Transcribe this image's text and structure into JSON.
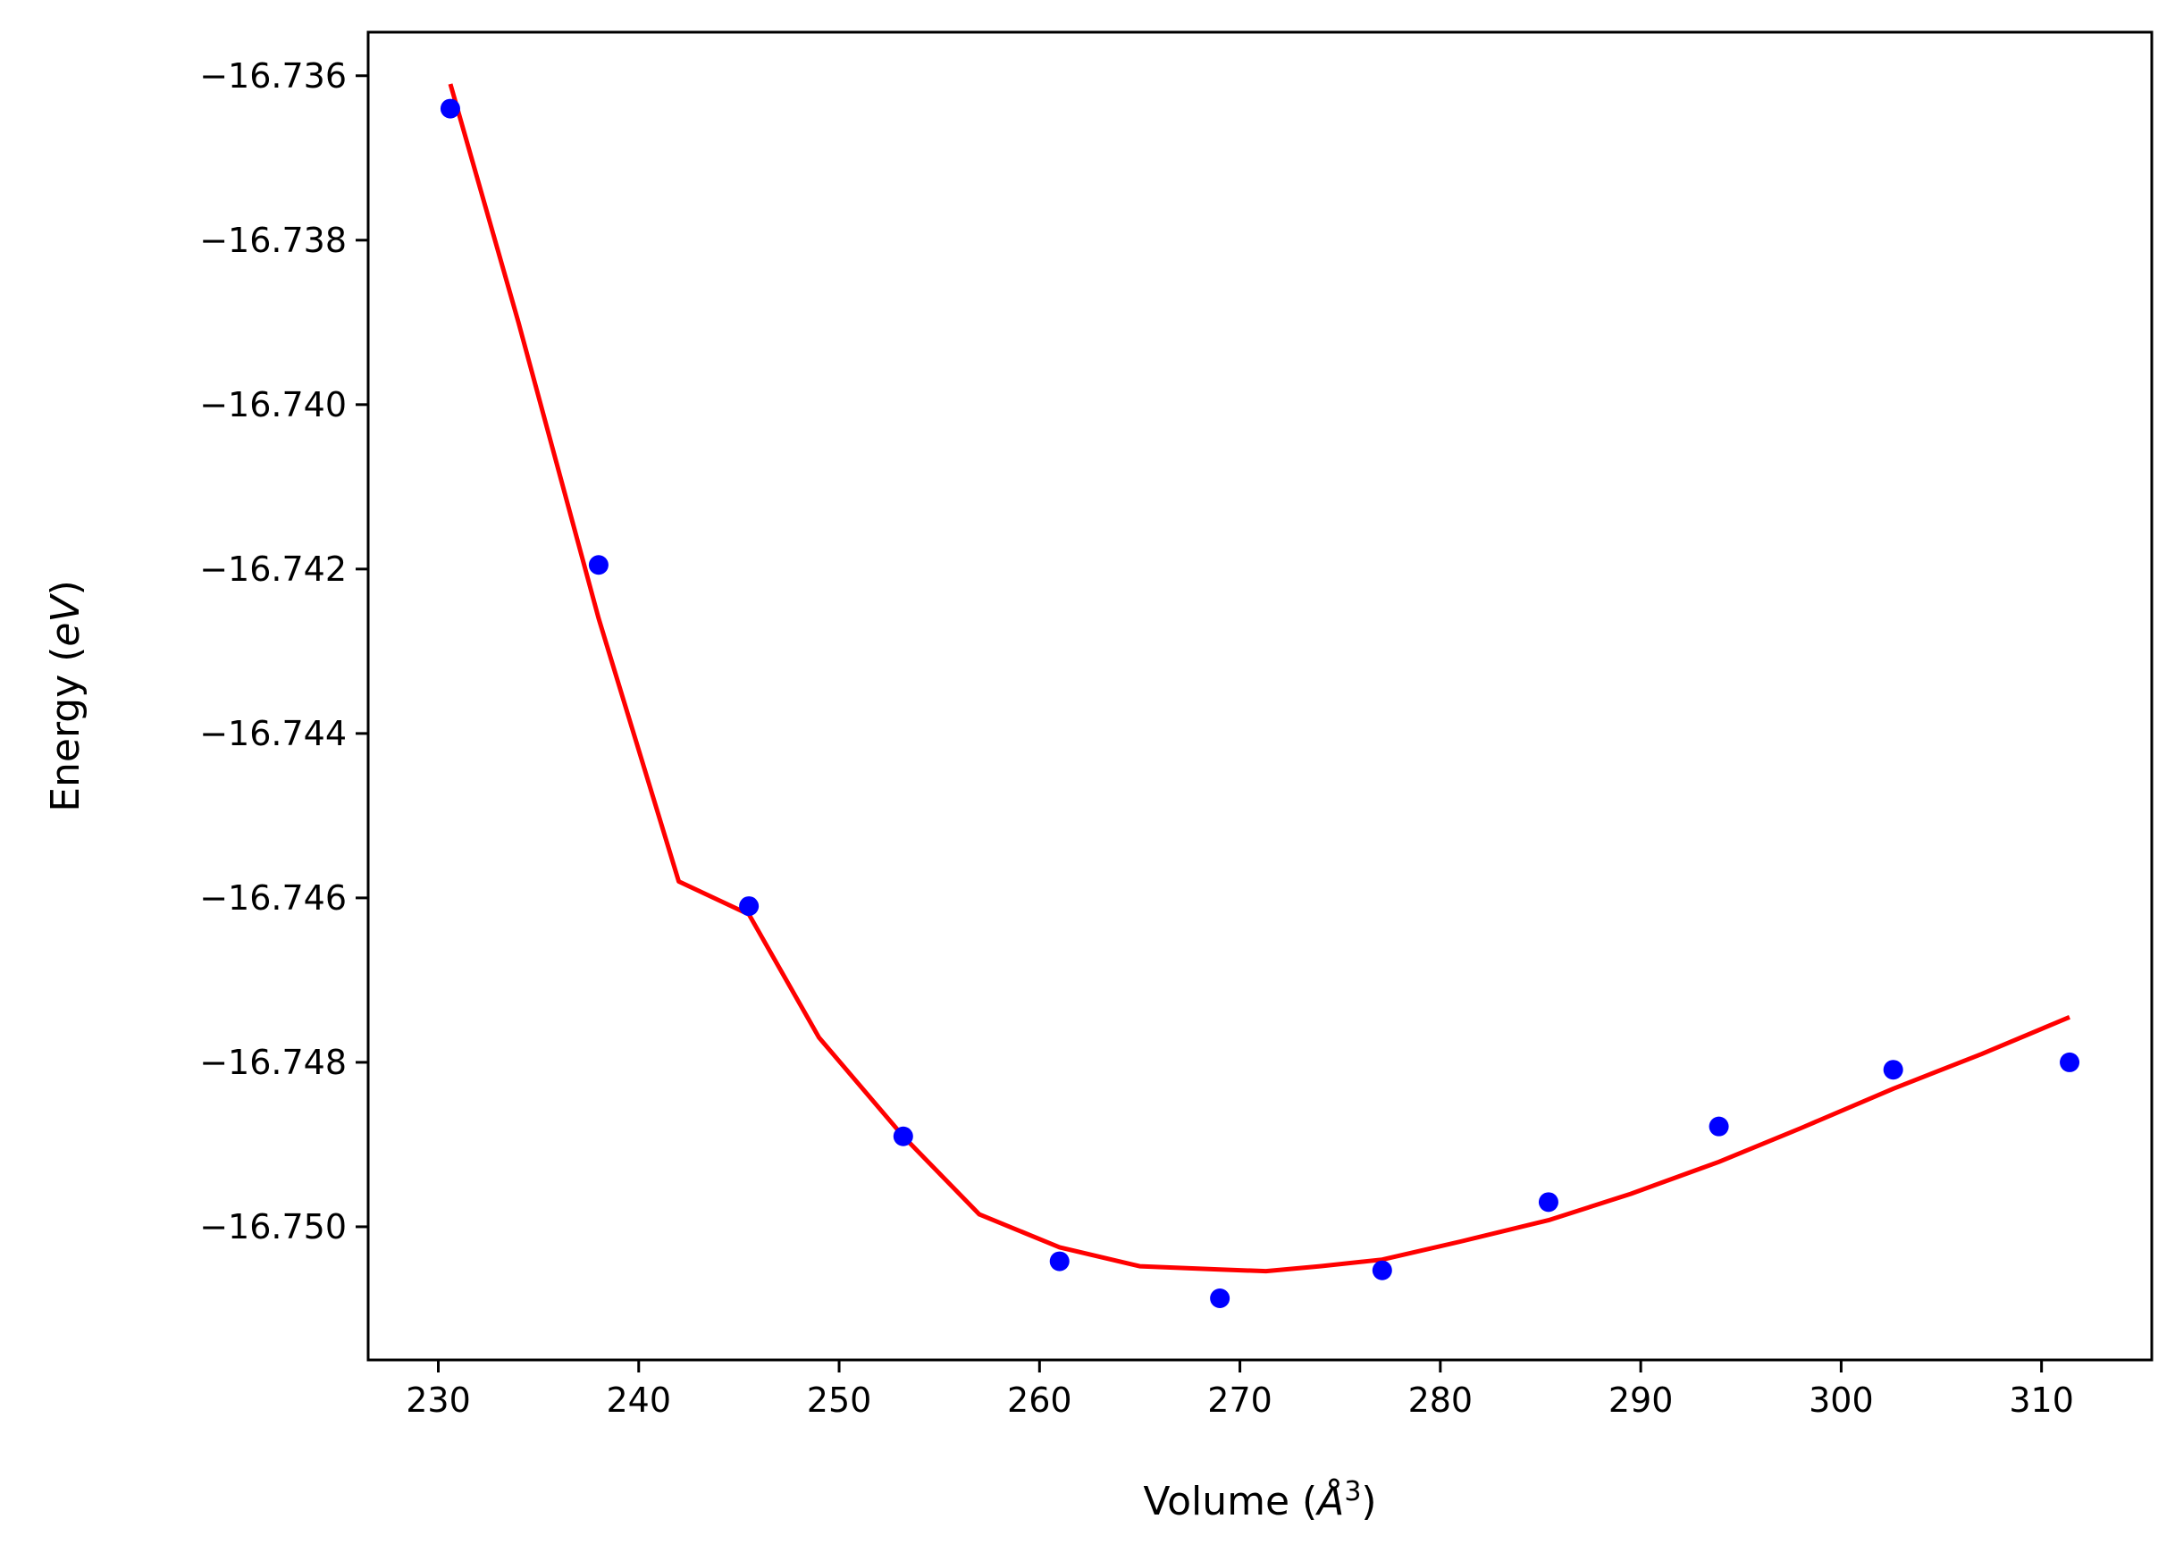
{
  "chart_data": {
    "type": "scatter",
    "title": "",
    "xlabel": {
      "prefix": "Volume (",
      "symbol": "Å",
      "sup": "3",
      "suffix": ")"
    },
    "ylabel": {
      "prefix": "Energy (",
      "symbol": "eV",
      "suffix": ")"
    },
    "xlim": [
      226.5,
      315.5
    ],
    "ylim": [
      -16.75162,
      -16.73547
    ],
    "xticks": [
      230,
      240,
      250,
      260,
      270,
      280,
      290,
      300,
      310
    ],
    "yticks": [
      -16.736,
      -16.738,
      -16.74,
      -16.742,
      -16.744,
      -16.746,
      -16.748,
      -16.75
    ],
    "ytick_labels": [
      "−16.736",
      "−16.738",
      "−16.740",
      "−16.742",
      "−16.744",
      "−16.746",
      "−16.748",
      "−16.750"
    ],
    "grid": false,
    "series": [
      {
        "kind": "points",
        "color": "#0000ff",
        "x": [
          230.6,
          238.0,
          245.5,
          253.2,
          261.0,
          269.0,
          277.1,
          285.4,
          293.9,
          302.6,
          311.4
        ],
        "y": [
          -16.7364,
          -16.74195,
          -16.7461,
          -16.7489,
          -16.75042,
          -16.75087,
          -16.75053,
          -16.7497,
          -16.74878,
          -16.74809,
          -16.748
        ]
      },
      {
        "kind": "line",
        "color": "#ff0000",
        "x": [
          230.6,
          234.0,
          238.0,
          242.0,
          245.5,
          249.0,
          253.2,
          257.0,
          261.0,
          265.0,
          269.0,
          271.3,
          274.0,
          277.1,
          281.0,
          285.4,
          289.5,
          293.9,
          298.0,
          302.6,
          307.0,
          311.4
        ],
        "y": [
          -16.7361,
          -16.739,
          -16.7426,
          -16.7458,
          -16.7462,
          -16.7477,
          -16.7489,
          -16.74985,
          -16.75025,
          -16.75048,
          -16.75052,
          -16.75054,
          -16.75048,
          -16.7504,
          -16.75018,
          -16.74992,
          -16.7496,
          -16.74921,
          -16.7488,
          -16.74832,
          -16.7479,
          -16.74745
        ]
      }
    ]
  }
}
